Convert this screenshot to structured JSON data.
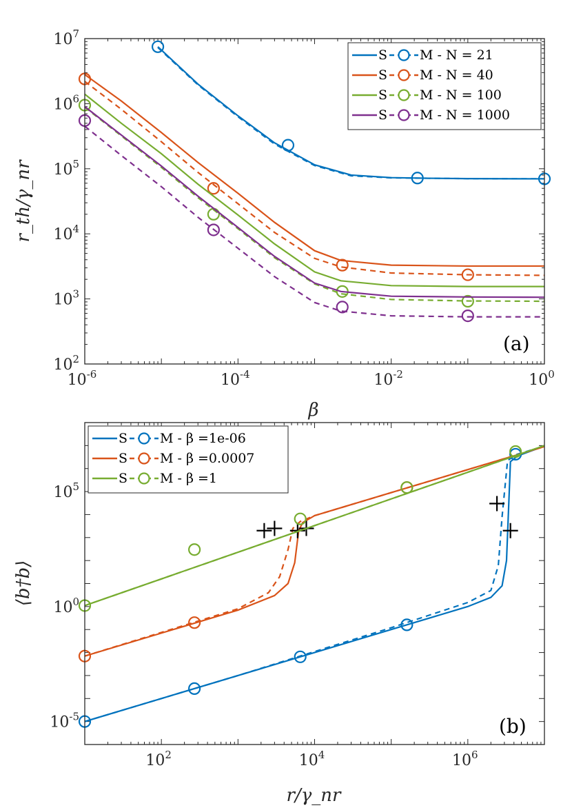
{
  "chart_data": [
    {
      "type": "line",
      "panel_label": "(a)",
      "xlabel": "β",
      "ylabel": "r_th/γ_nr",
      "xscale": "log",
      "yscale": "log",
      "xlim": [
        1e-06,
        1
      ],
      "ylim": [
        100,
        10000000.0
      ],
      "xtick_labels": [
        "10^-6",
        "10^-4",
        "10^-2",
        "10^0"
      ],
      "ytick_labels": [
        "10^2",
        "10^3",
        "10^4",
        "10^5",
        "10^6",
        "10^7"
      ],
      "legend_location": "top-right",
      "series": [
        {
          "name": "S - - M - N = 21",
          "legend": {
            "s": "S",
            "m": "M",
            "param": "N = 21"
          },
          "color": "#0072BD",
          "solid": {
            "x": [
              9e-06,
              3e-05,
              0.0001,
              0.0003,
              0.001,
              0.003,
              0.01,
              0.03,
              0.1,
              1
            ],
            "y": [
              7500000.0,
              2000000.0,
              650000.0,
              250000.0,
              115000.0,
              80000.0,
              73000.0,
              71500.0,
              70500.0,
              70000.0
            ]
          },
          "dashed": {
            "x": [
              9e-06,
              3e-05,
              0.0001,
              0.0003,
              0.001,
              0.003,
              0.01,
              0.03,
              0.1,
              1
            ],
            "y": [
              7300000.0,
              1950000.0,
              630000.0,
              240000.0,
              112000.0,
              78000.0,
              72500.0,
              71500.0,
              70500.0,
              70000.0
            ]
          },
          "markers": {
            "x": [
              9e-06,
              0.00045,
              0.022,
              1
            ],
            "y": [
              7500000.0,
              230000.0,
              72000.0,
              70000.0
            ]
          }
        },
        {
          "name": "S - - M - N = 40",
          "legend": {
            "s": "S",
            "m": "M",
            "param": "N = 40"
          },
          "color": "#D95319",
          "solid": {
            "x": [
              1e-06,
              3e-06,
              1e-05,
              3e-05,
              0.0001,
              0.0003,
              0.001,
              0.0022,
              0.01,
              0.1,
              1
            ],
            "y": [
              2800000.0,
              1100000.0,
              360000.0,
              125000.0,
              42000.0,
              15000.0,
              5500.0,
              3900.0,
              3300.0,
              3200.0,
              3200.0
            ]
          },
          "dashed": {
            "x": [
              1e-06,
              3e-06,
              1e-05,
              3e-05,
              0.0001,
              0.0003,
              0.001,
              0.0022,
              0.01,
              0.1,
              1
            ],
            "y": [
              2200000.0,
              820000.0,
              260000.0,
              88000.0,
              29000.0,
              10500.0,
              4200.0,
              3100.0,
              2500.0,
              2350.0,
              2300.0
            ]
          },
          "markers": {
            "x": [
              1e-06,
              4.8e-05,
              0.0023,
              0.1
            ],
            "y": [
              2400000.0,
              50000.0,
              3300.0,
              2350.0
            ]
          }
        },
        {
          "name": "S - - M - N = 100",
          "legend": {
            "s": "S",
            "m": "M",
            "param": "N = 100"
          },
          "color": "#77AC30",
          "solid": {
            "x": [
              1e-06,
              3e-06,
              1e-05,
              3e-05,
              0.0001,
              0.0003,
              0.001,
              0.0022,
              0.01,
              0.1,
              1
            ],
            "y": [
              1400000.0,
              500000.0,
              170000.0,
              58000.0,
              19500.0,
              7000.0,
              2600.0,
              1900.0,
              1600.0,
              1550.0,
              1550.0
            ]
          },
          "dashed": {
            "x": [
              1e-06,
              3e-06,
              1e-05,
              3e-05,
              0.0001,
              0.0003,
              0.001,
              0.0022,
              0.01,
              0.1,
              1
            ],
            "y": [
              880000.0,
              320000.0,
              105000.0,
              36000.0,
              12000.0,
              4300.0,
              1700.0,
              1200.0,
              980.0,
              930.0,
              920.0
            ]
          },
          "markers": {
            "x": [
              1e-06,
              4.8e-05,
              0.0023,
              0.1
            ],
            "y": [
              950000.0,
              20000.0,
              1300.0,
              920.0
            ]
          }
        },
        {
          "name": "S - - M - N = 1000",
          "legend": {
            "s": "S",
            "m": "M",
            "param": "N = 1000"
          },
          "color": "#7E2F8E",
          "solid": {
            "x": [
              1e-06,
              3e-06,
              1e-05,
              3e-05,
              0.0001,
              0.0003,
              0.001,
              0.0022,
              0.01,
              0.1,
              1
            ],
            "y": [
              900000.0,
              330000.0,
              110000.0,
              38000.0,
              12500.0,
              4500.0,
              1750.0,
              1300.0,
              1100.0,
              1070.0,
              1060.0
            ]
          },
          "dashed": {
            "x": [
              1e-06,
              3e-06,
              1e-05,
              3e-05,
              0.0001,
              0.0003,
              0.001,
              0.0022,
              0.01,
              0.1,
              1
            ],
            "y": [
              450000.0,
              160000.0,
              53000.0,
              18000.0,
              6000.0,
              2200.0,
              880.0,
              650.0,
              550.0,
              530.0,
              530.0
            ]
          },
          "markers": {
            "x": [
              1e-06,
              4.8e-05,
              0.0023,
              0.1
            ],
            "y": [
              550000.0,
              11500.0,
              750.0,
              550.0
            ]
          }
        }
      ]
    },
    {
      "type": "line",
      "panel_label": "(b)",
      "xlabel": "r/γ_nr",
      "ylabel": "⟨b†b⟩",
      "xscale": "log",
      "yscale": "log",
      "xlim": [
        10,
        10000000.0
      ],
      "ylim": [
        1e-06,
        100000000.0
      ],
      "xtick_labels": [
        "10^2",
        "10^4",
        "10^6"
      ],
      "ytick_labels": [
        "10^-5",
        "10^0",
        "10^5"
      ],
      "legend_location": "top-left",
      "series": [
        {
          "name": "S - - M - β =1e-06",
          "legend": {
            "s": "S",
            "m": "M",
            "param": "β =1e-06"
          },
          "color": "#0072BD",
          "solid": {
            "x": [
              10,
              100,
              1000,
              10000.0,
              100000.0,
              1000000.0,
              2000000.0,
              2800000.0,
              3200000.0,
              3600000.0,
              4500000.0,
              10000000.0
            ],
            "y": [
              1e-05,
              0.0001,
              0.001,
              0.01,
              0.1,
              1,
              2.5,
              8,
              100,
              2000000.0,
              3600000.0,
              9500000.0
            ]
          },
          "dashed": {
            "x": [
              10,
              100,
              1000,
              10000.0,
              100000.0,
              1000000.0,
              2000000.0,
              2500000.0,
              2800000.0,
              3300000.0,
              4200000.0,
              10000000.0
            ],
            "y": [
              1e-05,
              0.0001,
              0.001,
              0.011,
              0.12,
              1.5,
              5,
              60,
              8000.0,
              2200000.0,
              4000000.0,
              9500000.0
            ]
          },
          "markers": {
            "x": [
              10,
              270,
              6500,
              160000.0,
              4200000.0
            ],
            "y": [
              1e-05,
              0.00027,
              0.0065,
              0.16,
              4200000.0
            ]
          },
          "crosses": {
            "x": [
              2400000.0,
              3600000.0
            ],
            "y": [
              30000.0,
              2000.0
            ]
          }
        },
        {
          "name": "S - - M - β =0.0007",
          "legend": {
            "s": "S",
            "m": "M",
            "param": "β =0.0007"
          },
          "color": "#D95319",
          "solid": {
            "x": [
              10,
              100,
              1000,
              3000,
              4500,
              5500,
              6200,
              7000,
              10000.0,
              100000.0,
              1000000.0,
              10000000.0
            ],
            "y": [
              0.007,
              0.07,
              0.7,
              3,
              10,
              80,
              2000,
              4500,
              9000,
              90000.0,
              900000.0,
              9000000.0
            ]
          },
          "dashed": {
            "x": [
              10,
              100,
              1000,
              2500,
              3500,
              4500,
              5200,
              6500,
              10000.0,
              100000.0,
              1000000.0,
              10000000.0
            ],
            "y": [
              0.007,
              0.075,
              0.8,
              4,
              20,
              300,
              2500,
              5000,
              9000,
              90000.0,
              900000.0,
              9000000.0
            ]
          },
          "markers": {
            "x": [
              10,
              270,
              160000.0
            ],
            "y": [
              0.007,
              0.2,
              150000.0
            ]
          },
          "crosses": {
            "x": [
              2200,
              3000,
              6000,
              7800
            ],
            "y": [
              2000.0,
              2500.0,
              2000.0,
              2500.0
            ]
          }
        },
        {
          "name": "S - - M - β =1",
          "legend": {
            "s": "S",
            "m": "M",
            "param": "β =1"
          },
          "color": "#77AC30",
          "solid": {
            "x": [
              10,
              10000000.0
            ],
            "y": [
              1.1,
              10000000.0
            ]
          },
          "dashed": {
            "x": [
              10,
              10000000.0
            ],
            "y": [
              1.1,
              10000000.0
            ]
          },
          "markers": {
            "x": [
              10,
              270,
              6500,
              160000.0,
              4200000.0
            ],
            "y": [
              1.1,
              300.0,
              6500.0,
              150000.0,
              5500000.0
            ]
          }
        }
      ]
    }
  ]
}
